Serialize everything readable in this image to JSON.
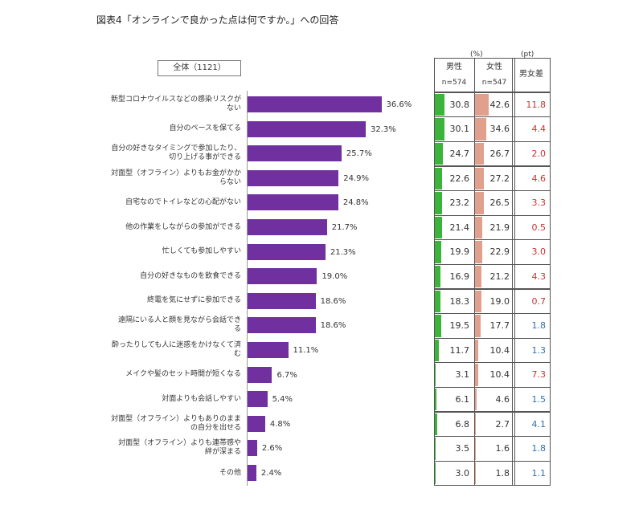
{
  "chart_data": {
    "type": "bar",
    "orientation": "horizontal",
    "title": "図表4「オンラインで良かった点は何ですか。」への回答",
    "legend_label": "全体（1121）",
    "color": "#7030a0",
    "xlim": [
      0,
      40
    ],
    "categories": [
      "新型コロナウイルスなどの感染リスクが\nない",
      "自分のペースを保てる",
      "自分の好きなタイミングで参加したり、\n切り上げる事ができる",
      "対面型（オフライン）よりもお金がかか\nらない",
      "自宅なのでトイレなどの心配がない",
      "他の作業をしながらの参加ができる",
      "忙しくても参加しやすい",
      "自分の好きなものを飲食できる",
      "終電を気にせずに参加できる",
      "遠隔にいる人と顔を見ながら会話でき\nる",
      "酔ったりしても人に迷惑をかけなくて済\nむ",
      "メイクや髪のセット時間が短くなる",
      "対面よりも会話しやすい",
      "対面型（オフライン）よりもありのまま\nの自分を出せる",
      "対面型（オフライン）よりも連帯感や\n絆が深まる",
      "その他"
    ],
    "values": [
      36.6,
      32.3,
      25.7,
      24.9,
      24.8,
      21.7,
      21.3,
      19.0,
      18.6,
      18.6,
      11.1,
      6.7,
      5.4,
      4.8,
      2.6,
      2.4
    ],
    "value_labels": [
      "36.6%",
      "32.3%",
      "25.7%",
      "24.9%",
      "24.8%",
      "21.7%",
      "21.3%",
      "19.0%",
      "18.6%",
      "18.6%",
      "11.1%",
      "6.7%",
      "5.4%",
      "4.8%",
      "2.6%",
      "2.4%"
    ],
    "table": {
      "unit_pct": "(%)",
      "unit_pt": "(pt)",
      "columns": [
        {
          "name": "男性",
          "n": "n=574",
          "color": "#3cb43c",
          "values": [
            30.8,
            30.1,
            24.7,
            22.6,
            23.2,
            21.4,
            19.9,
            16.9,
            18.3,
            19.5,
            11.7,
            3.1,
            6.1,
            6.8,
            3.5,
            3.0
          ],
          "value_labels": [
            "30.8",
            "30.1",
            "24.7",
            "22.6",
            "23.2",
            "21.4",
            "19.9",
            "16.9",
            "18.3",
            "19.5",
            "11.7",
            "3.1",
            "6.1",
            "6.8",
            "3.5",
            "3.0"
          ]
        },
        {
          "name": "女性",
          "n": "n=547",
          "color": "#e0a08c",
          "values": [
            42.6,
            34.6,
            26.7,
            27.2,
            26.5,
            21.9,
            22.9,
            21.2,
            19.0,
            17.7,
            10.4,
            10.4,
            4.6,
            2.7,
            1.6,
            1.8
          ],
          "value_labels": [
            "42.6",
            "34.6",
            "26.7",
            "27.2",
            "26.5",
            "21.9",
            "22.9",
            "21.2",
            "19.0",
            "17.7",
            "10.4",
            "10.4",
            "4.6",
            "2.7",
            "1.6",
            "1.8"
          ]
        }
      ],
      "diff": {
        "name": "男女差",
        "values": [
          11.8,
          4.4,
          2.0,
          4.6,
          3.3,
          0.5,
          3.0,
          4.3,
          0.7,
          1.8,
          1.3,
          7.3,
          1.5,
          4.1,
          1.8,
          1.1
        ],
        "value_labels": [
          "11.8",
          "4.4",
          "2.0",
          "4.6",
          "3.3",
          "0.5",
          "3.0",
          "4.3",
          "0.7",
          "1.8",
          "1.3",
          "7.3",
          "1.5",
          "4.1",
          "1.8",
          "1.1"
        ],
        "colors": [
          "#d03030",
          "#d03030",
          "#d03030",
          "#d03030",
          "#d03030",
          "#d03030",
          "#d03030",
          "#d03030",
          "#d03030",
          "#3070b0",
          "#3070b0",
          "#d03030",
          "#3070b0",
          "#3070b0",
          "#3070b0",
          "#3070b0"
        ]
      }
    }
  }
}
